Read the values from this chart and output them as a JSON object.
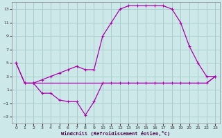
{
  "xlabel": "Windchill (Refroidissement éolien,°C)",
  "bg_color": "#cce8e8",
  "grid_color": "#aacccc",
  "line_color": "#aa00aa",
  "xlim": [
    -0.5,
    23.5
  ],
  "ylim": [
    -4,
    14
  ],
  "xticks": [
    0,
    1,
    2,
    3,
    4,
    5,
    6,
    7,
    8,
    9,
    10,
    11,
    12,
    13,
    14,
    15,
    16,
    17,
    18,
    19,
    20,
    21,
    22,
    23
  ],
  "yticks": [
    -3,
    -1,
    1,
    3,
    5,
    7,
    9,
    11,
    13
  ],
  "line_top_x": [
    0,
    1,
    2,
    3,
    4,
    5,
    6,
    7,
    8,
    9,
    10,
    11,
    12,
    13,
    14,
    15,
    16,
    17,
    18,
    19,
    20,
    21,
    22,
    23
  ],
  "line_top_y": [
    5,
    2,
    2,
    2.5,
    3,
    3.5,
    4,
    4.5,
    4,
    4,
    9,
    11,
    13,
    13.5,
    13.5,
    13.5,
    13.5,
    13.5,
    13,
    11,
    7.5,
    5,
    3,
    3
  ],
  "line_bot_x": [
    0,
    1,
    2,
    3,
    4,
    5,
    6,
    7,
    8,
    9,
    10,
    11,
    12,
    13,
    14,
    15,
    16,
    17,
    18,
    19,
    20,
    21,
    22,
    23
  ],
  "line_bot_y": [
    5,
    2,
    2,
    0.5,
    0.5,
    -0.5,
    -0.75,
    -0.75,
    -2.75,
    -0.75,
    2,
    2,
    2,
    2,
    2,
    2,
    2,
    2,
    2,
    2,
    2,
    2,
    2,
    3
  ],
  "line_mid_x": [
    1,
    2,
    3,
    4,
    5,
    6,
    7,
    8,
    9,
    10,
    11,
    12,
    13,
    14,
    15,
    16,
    17,
    18,
    19,
    20,
    21,
    22,
    23
  ],
  "line_mid_y": [
    2,
    2,
    2,
    2,
    2,
    2,
    2,
    2,
    2,
    2,
    2,
    2,
    2,
    2,
    2,
    2,
    2,
    2,
    2,
    2,
    2,
    2,
    3
  ]
}
